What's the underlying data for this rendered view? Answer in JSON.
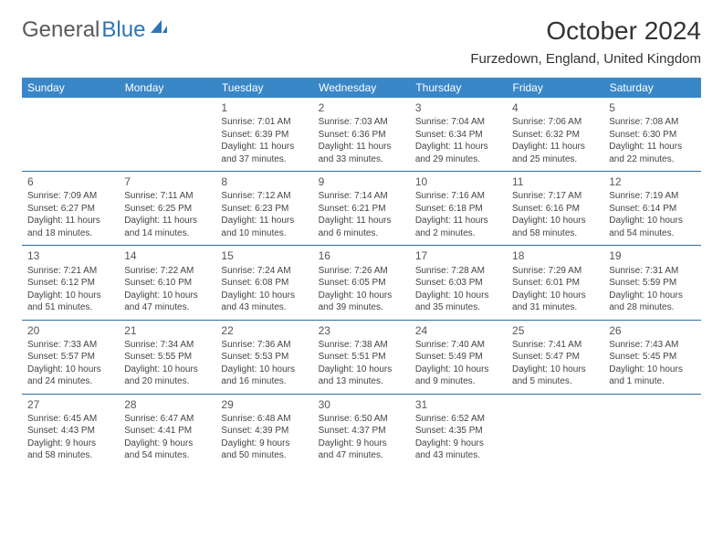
{
  "brand": {
    "part1": "General",
    "part2": "Blue"
  },
  "title": "October 2024",
  "location": "Furzedown, England, United Kingdom",
  "colors": {
    "header_bg": "#3a87c8",
    "header_text": "#ffffff",
    "border": "#2e6da4",
    "logo_gray": "#5a5a5a",
    "logo_blue": "#2e75b6",
    "text": "#444444",
    "background": "#ffffff"
  },
  "typography": {
    "title_fontsize": 28,
    "location_fontsize": 15,
    "dayheader_fontsize": 12,
    "cell_fontsize": 10
  },
  "day_headers": [
    "Sunday",
    "Monday",
    "Tuesday",
    "Wednesday",
    "Thursday",
    "Friday",
    "Saturday"
  ],
  "weeks": [
    [
      null,
      null,
      {
        "n": "1",
        "sr": "Sunrise: 7:01 AM",
        "ss": "Sunset: 6:39 PM",
        "dl": "Daylight: 11 hours and 37 minutes."
      },
      {
        "n": "2",
        "sr": "Sunrise: 7:03 AM",
        "ss": "Sunset: 6:36 PM",
        "dl": "Daylight: 11 hours and 33 minutes."
      },
      {
        "n": "3",
        "sr": "Sunrise: 7:04 AM",
        "ss": "Sunset: 6:34 PM",
        "dl": "Daylight: 11 hours and 29 minutes."
      },
      {
        "n": "4",
        "sr": "Sunrise: 7:06 AM",
        "ss": "Sunset: 6:32 PM",
        "dl": "Daylight: 11 hours and 25 minutes."
      },
      {
        "n": "5",
        "sr": "Sunrise: 7:08 AM",
        "ss": "Sunset: 6:30 PM",
        "dl": "Daylight: 11 hours and 22 minutes."
      }
    ],
    [
      {
        "n": "6",
        "sr": "Sunrise: 7:09 AM",
        "ss": "Sunset: 6:27 PM",
        "dl": "Daylight: 11 hours and 18 minutes."
      },
      {
        "n": "7",
        "sr": "Sunrise: 7:11 AM",
        "ss": "Sunset: 6:25 PM",
        "dl": "Daylight: 11 hours and 14 minutes."
      },
      {
        "n": "8",
        "sr": "Sunrise: 7:12 AM",
        "ss": "Sunset: 6:23 PM",
        "dl": "Daylight: 11 hours and 10 minutes."
      },
      {
        "n": "9",
        "sr": "Sunrise: 7:14 AM",
        "ss": "Sunset: 6:21 PM",
        "dl": "Daylight: 11 hours and 6 minutes."
      },
      {
        "n": "10",
        "sr": "Sunrise: 7:16 AM",
        "ss": "Sunset: 6:18 PM",
        "dl": "Daylight: 11 hours and 2 minutes."
      },
      {
        "n": "11",
        "sr": "Sunrise: 7:17 AM",
        "ss": "Sunset: 6:16 PM",
        "dl": "Daylight: 10 hours and 58 minutes."
      },
      {
        "n": "12",
        "sr": "Sunrise: 7:19 AM",
        "ss": "Sunset: 6:14 PM",
        "dl": "Daylight: 10 hours and 54 minutes."
      }
    ],
    [
      {
        "n": "13",
        "sr": "Sunrise: 7:21 AM",
        "ss": "Sunset: 6:12 PM",
        "dl": "Daylight: 10 hours and 51 minutes."
      },
      {
        "n": "14",
        "sr": "Sunrise: 7:22 AM",
        "ss": "Sunset: 6:10 PM",
        "dl": "Daylight: 10 hours and 47 minutes."
      },
      {
        "n": "15",
        "sr": "Sunrise: 7:24 AM",
        "ss": "Sunset: 6:08 PM",
        "dl": "Daylight: 10 hours and 43 minutes."
      },
      {
        "n": "16",
        "sr": "Sunrise: 7:26 AM",
        "ss": "Sunset: 6:05 PM",
        "dl": "Daylight: 10 hours and 39 minutes."
      },
      {
        "n": "17",
        "sr": "Sunrise: 7:28 AM",
        "ss": "Sunset: 6:03 PM",
        "dl": "Daylight: 10 hours and 35 minutes."
      },
      {
        "n": "18",
        "sr": "Sunrise: 7:29 AM",
        "ss": "Sunset: 6:01 PM",
        "dl": "Daylight: 10 hours and 31 minutes."
      },
      {
        "n": "19",
        "sr": "Sunrise: 7:31 AM",
        "ss": "Sunset: 5:59 PM",
        "dl": "Daylight: 10 hours and 28 minutes."
      }
    ],
    [
      {
        "n": "20",
        "sr": "Sunrise: 7:33 AM",
        "ss": "Sunset: 5:57 PM",
        "dl": "Daylight: 10 hours and 24 minutes."
      },
      {
        "n": "21",
        "sr": "Sunrise: 7:34 AM",
        "ss": "Sunset: 5:55 PM",
        "dl": "Daylight: 10 hours and 20 minutes."
      },
      {
        "n": "22",
        "sr": "Sunrise: 7:36 AM",
        "ss": "Sunset: 5:53 PM",
        "dl": "Daylight: 10 hours and 16 minutes."
      },
      {
        "n": "23",
        "sr": "Sunrise: 7:38 AM",
        "ss": "Sunset: 5:51 PM",
        "dl": "Daylight: 10 hours and 13 minutes."
      },
      {
        "n": "24",
        "sr": "Sunrise: 7:40 AM",
        "ss": "Sunset: 5:49 PM",
        "dl": "Daylight: 10 hours and 9 minutes."
      },
      {
        "n": "25",
        "sr": "Sunrise: 7:41 AM",
        "ss": "Sunset: 5:47 PM",
        "dl": "Daylight: 10 hours and 5 minutes."
      },
      {
        "n": "26",
        "sr": "Sunrise: 7:43 AM",
        "ss": "Sunset: 5:45 PM",
        "dl": "Daylight: 10 hours and 1 minute."
      }
    ],
    [
      {
        "n": "27",
        "sr": "Sunrise: 6:45 AM",
        "ss": "Sunset: 4:43 PM",
        "dl": "Daylight: 9 hours and 58 minutes."
      },
      {
        "n": "28",
        "sr": "Sunrise: 6:47 AM",
        "ss": "Sunset: 4:41 PM",
        "dl": "Daylight: 9 hours and 54 minutes."
      },
      {
        "n": "29",
        "sr": "Sunrise: 6:48 AM",
        "ss": "Sunset: 4:39 PM",
        "dl": "Daylight: 9 hours and 50 minutes."
      },
      {
        "n": "30",
        "sr": "Sunrise: 6:50 AM",
        "ss": "Sunset: 4:37 PM",
        "dl": "Daylight: 9 hours and 47 minutes."
      },
      {
        "n": "31",
        "sr": "Sunrise: 6:52 AM",
        "ss": "Sunset: 4:35 PM",
        "dl": "Daylight: 9 hours and 43 minutes."
      },
      null,
      null
    ]
  ]
}
